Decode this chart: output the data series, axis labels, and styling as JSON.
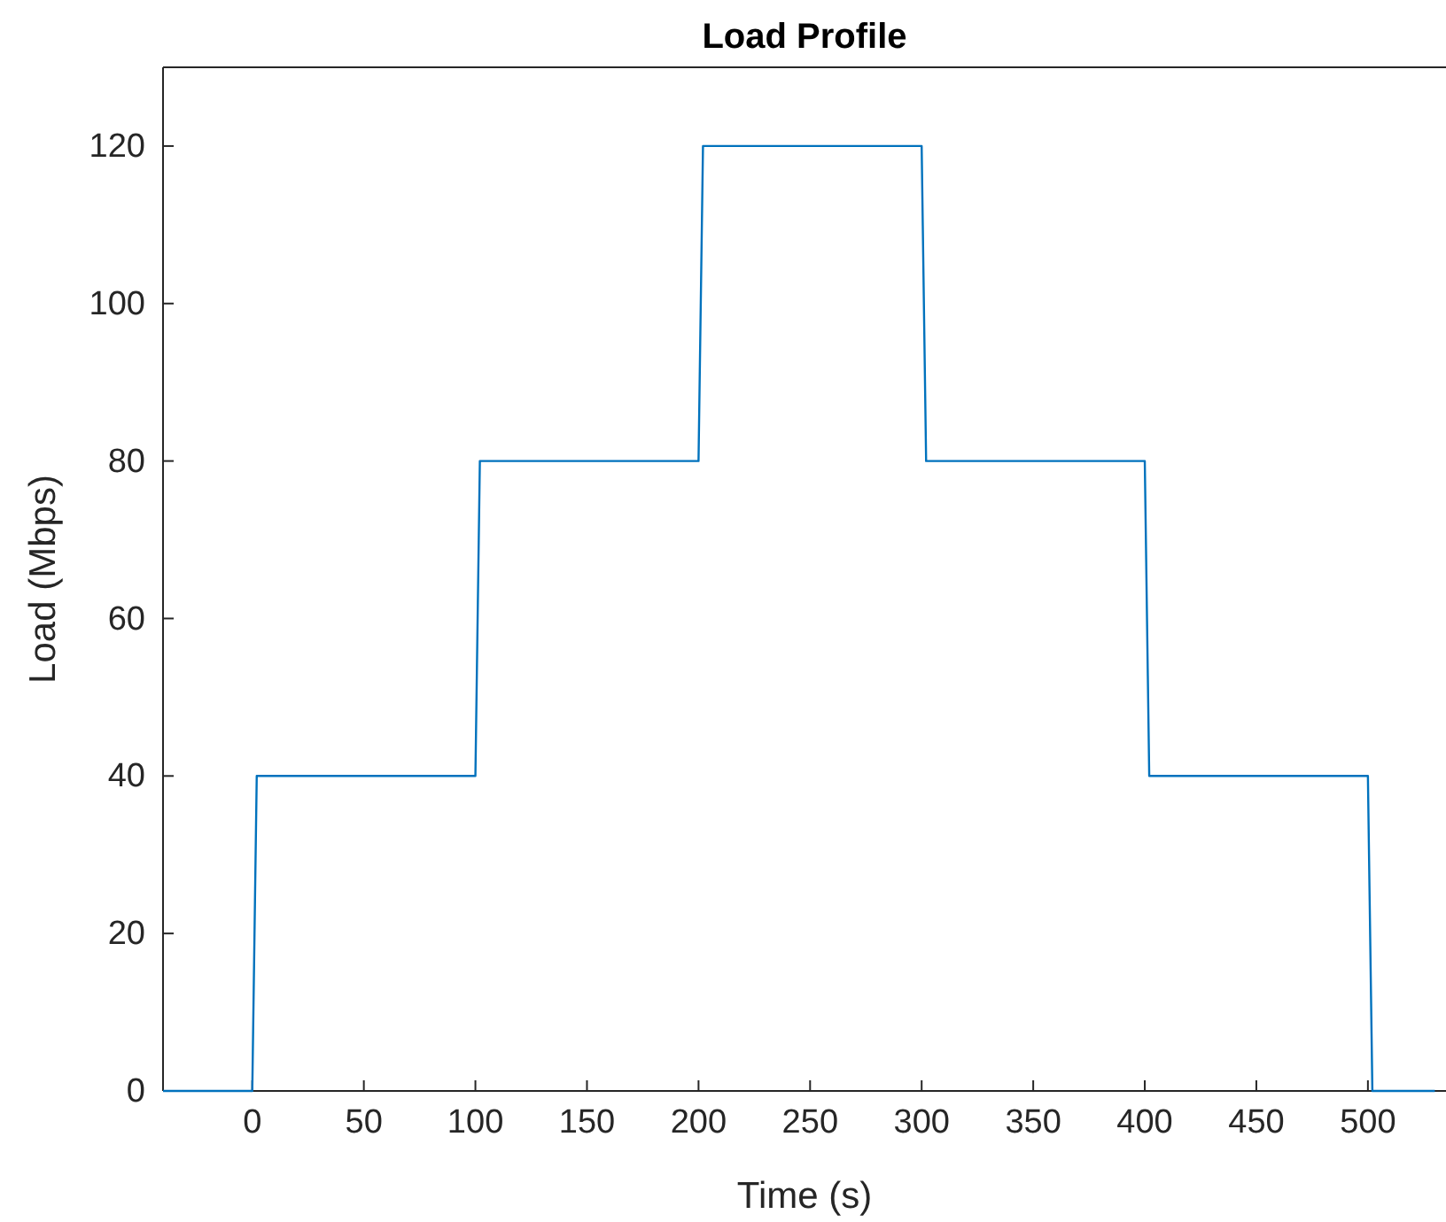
{
  "chart_data": {
    "type": "line",
    "title": "Load Profile",
    "xlabel": "Time (s)",
    "ylabel": "Load (Mbps)",
    "x": [
      -40,
      0,
      2,
      100,
      102,
      200,
      202,
      300,
      302,
      400,
      402,
      500,
      502,
      530
    ],
    "series": [
      {
        "color": "#0072bd",
        "values": [
          0,
          0,
          40,
          40,
          80,
          80,
          120,
          120,
          80,
          80,
          40,
          40,
          0,
          0
        ]
      }
    ],
    "xlim": [
      -40,
      535
    ],
    "xticks": [
      0,
      50,
      100,
      150,
      200,
      250,
      300,
      350,
      400,
      450,
      500
    ],
    "ylim": [
      0,
      130
    ],
    "yticks": [
      0,
      20,
      40,
      60,
      80,
      100,
      120
    ],
    "grid": false,
    "marker": "none",
    "line_style": "solid"
  }
}
